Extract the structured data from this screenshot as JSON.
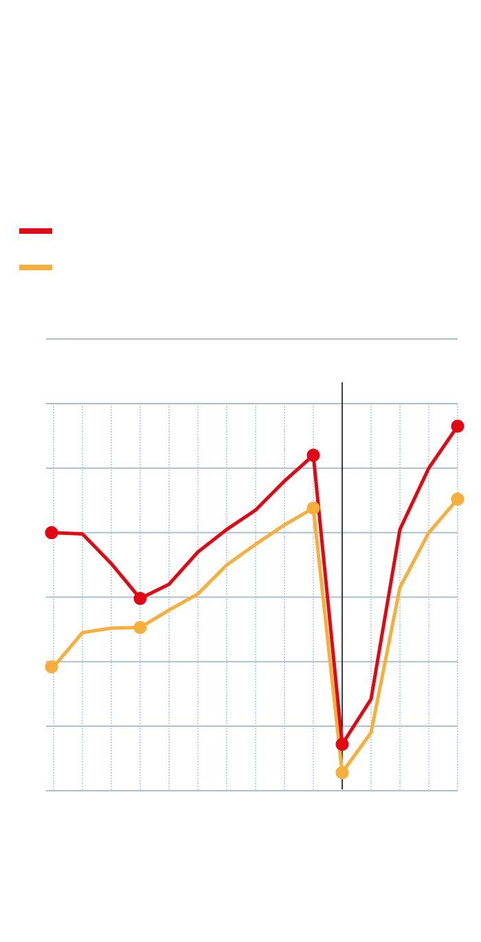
{
  "chart_data": {
    "type": "line",
    "title": "",
    "xlabel": "",
    "ylabel": "",
    "x": [
      0,
      1,
      2,
      3,
      4,
      5,
      6,
      7,
      8,
      9,
      10,
      11,
      12,
      13,
      14
    ],
    "ylim": [
      0,
      6
    ],
    "y_gridlines": [
      0,
      1,
      2,
      3,
      4,
      5,
      6
    ],
    "x_gridlines": [
      0,
      1,
      2,
      3,
      4,
      5,
      6,
      7,
      8,
      9,
      10,
      11,
      12,
      13,
      14
    ],
    "vertical_marker_x": 10,
    "grid": true,
    "legend": "top-left",
    "series": [
      {
        "color": "#e30613",
        "values": [
          4.0,
          3.98,
          3.52,
          2.98,
          3.2,
          3.7,
          4.05,
          4.35,
          4.8,
          5.2,
          0.72,
          1.42,
          4.05,
          5.0,
          5.65
        ],
        "markers": [
          0,
          3,
          9,
          10,
          14
        ]
      },
      {
        "color": "#f7ae3a",
        "values": [
          1.92,
          2.45,
          2.52,
          2.53,
          2.8,
          3.05,
          3.5,
          3.82,
          4.12,
          4.38,
          0.28,
          0.9,
          3.15,
          4.0,
          4.52
        ],
        "markers": [
          0,
          3,
          9,
          10,
          14
        ]
      }
    ],
    "colors": {
      "grid_major": "#a9c1cd",
      "grid_minor": "#7fa3bd",
      "marker_line": "#000000"
    }
  }
}
